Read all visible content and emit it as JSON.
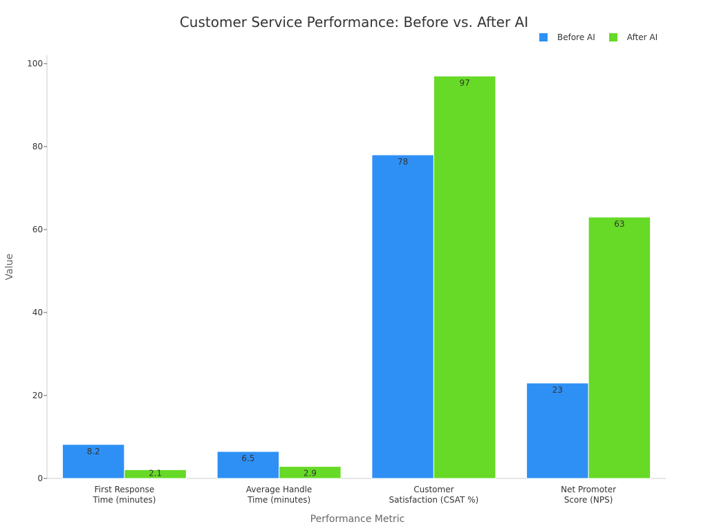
{
  "chart_data": {
    "type": "bar",
    "title": "Customer Service Performance: Before vs. After AI",
    "xlabel": "Performance Metric",
    "ylabel": "Value",
    "categories": [
      [
        "First Response",
        "Time (minutes)"
      ],
      [
        "Average Handle",
        "Time (minutes)"
      ],
      [
        "Customer",
        "Satisfaction (CSAT %)"
      ],
      [
        "Net Promoter",
        "Score (NPS)"
      ]
    ],
    "series": [
      {
        "name": "Before AI",
        "color": "#2E90F5",
        "values": [
          8.2,
          6.5,
          78,
          23
        ],
        "labels": [
          "8.2",
          "6.5",
          "78",
          "23"
        ]
      },
      {
        "name": "After AI",
        "color": "#66DA26",
        "values": [
          2.1,
          2.9,
          97,
          63
        ],
        "labels": [
          "2.1",
          "2.9",
          "97",
          "63"
        ]
      }
    ],
    "ylim": [
      0,
      100
    ],
    "yticks": [
      0,
      20,
      40,
      60,
      80,
      100
    ],
    "grid": false,
    "legend_position": "top-right"
  }
}
